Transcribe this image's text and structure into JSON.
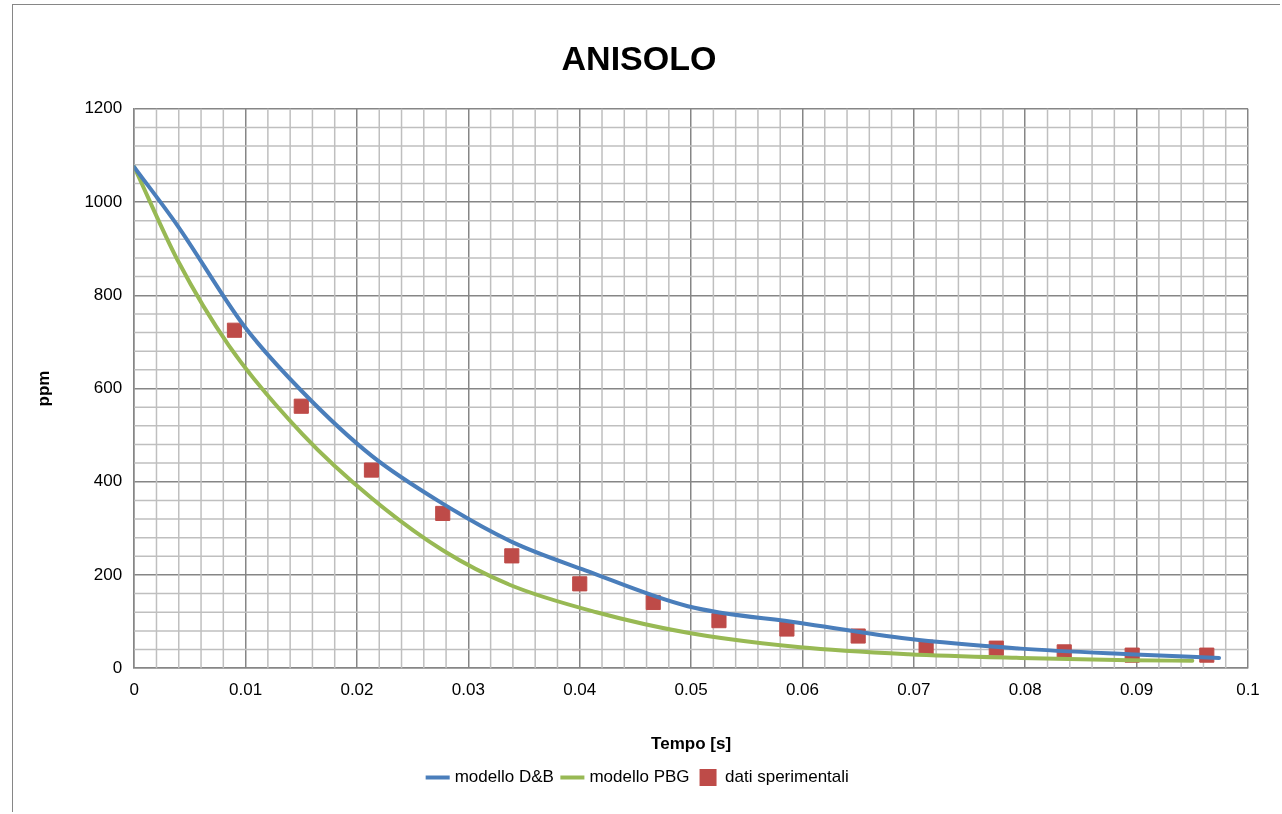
{
  "chart_data": {
    "type": "line",
    "title": "ANISOLO",
    "xlabel": "Tempo [s]",
    "ylabel": "ppm",
    "xlim": [
      0,
      0.1
    ],
    "xticks": [
      0,
      0.01,
      0.02,
      0.03,
      0.04,
      0.05,
      0.06,
      0.07,
      0.08,
      0.09,
      0.1
    ],
    "ylim": [
      0,
      1200
    ],
    "yticks": [
      0,
      200,
      400,
      600,
      800,
      1000,
      1200
    ],
    "grid": true,
    "legend": "bottom",
    "marker": "none",
    "line_style": "solid",
    "series": [
      {
        "name": "modello D&B",
        "color": "#4a7ebb",
        "x": [
          0,
          0.0039,
          0.0099,
          0.0151,
          0.0213,
          0.0277,
          0.034,
          0.0405,
          0.0497,
          0.0598,
          0.0695,
          0.0796,
          0.0893,
          0.0974
        ],
        "values": [
          1075,
          949,
          733,
          593,
          456,
          353,
          270,
          210,
          133,
          97,
          63,
          42,
          30,
          22
        ]
      },
      {
        "name": "modello PBG",
        "color": "#98b954",
        "x": [
          0,
          0.0039,
          0.0085,
          0.0151,
          0.0213,
          0.0277,
          0.0337,
          0.0415,
          0.0497,
          0.0598,
          0.0695,
          0.0796,
          0.0893,
          0.095
        ],
        "values": [
          1075,
          875,
          692,
          502,
          365,
          253,
          179,
          120,
          76,
          45,
          30,
          22,
          17,
          16
        ]
      },
      {
        "name": "dati sperimentali",
        "color": "#be4b48",
        "type": "scatter",
        "marker": "square",
        "x": [
          0.009,
          0.015,
          0.0213,
          0.0277,
          0.0339,
          0.04,
          0.0466,
          0.0525,
          0.0586,
          0.065,
          0.0711,
          0.0774,
          0.0835,
          0.0896,
          0.0963
        ],
        "values": [
          725,
          562,
          425,
          332,
          241,
          181,
          141,
          102,
          84,
          69,
          45,
          43,
          35,
          28,
          28
        ]
      }
    ]
  }
}
